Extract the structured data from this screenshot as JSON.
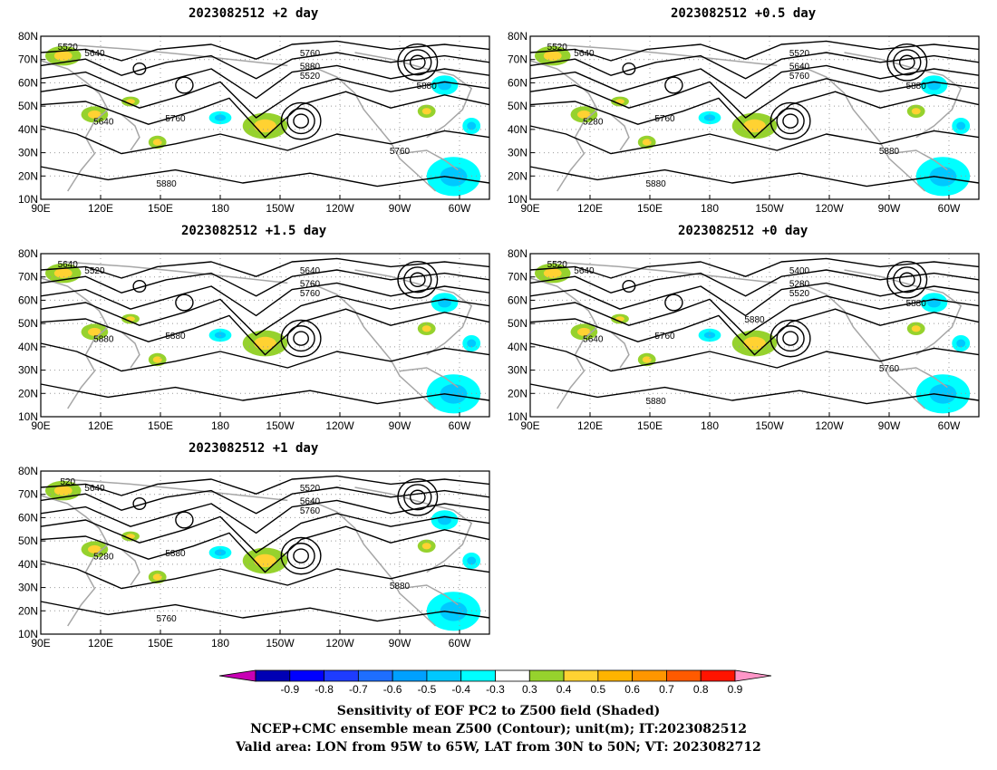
{
  "panels": [
    {
      "id": "p1",
      "title": "2023082512  +2 day"
    },
    {
      "id": "p2",
      "title": "2023082512  +0.5 day"
    },
    {
      "id": "p3",
      "title": "2023082512  +1.5 day"
    },
    {
      "id": "p4",
      "title": "2023082512  +0 day"
    },
    {
      "id": "p5",
      "title": "2023082512  +1 day"
    }
  ],
  "axes": {
    "x_ticks": [
      "90E",
      "120E",
      "150E",
      "180",
      "150W",
      "120W",
      "90W",
      "60W"
    ],
    "y_ticks": [
      "10N",
      "20N",
      "30N",
      "40N",
      "50N",
      "60N",
      "70N",
      "80N"
    ]
  },
  "contour_levels": {
    "p1": [
      "5520",
      "5640",
      "5760",
      "5880",
      "5520",
      "5640",
      "5760",
      "5760",
      "5880",
      "5880"
    ],
    "p2": [
      "5520",
      "5640",
      "5520",
      "5640",
      "5760",
      "5280",
      "5760",
      "5880",
      "5880",
      "5880"
    ],
    "p3": [
      "5640",
      "5520",
      "5640",
      "5760",
      "5760",
      "5880",
      "5880"
    ],
    "p4": [
      "5520",
      "5640",
      "5400",
      "5280",
      "5520",
      "5640",
      "5760",
      "5760",
      "5880",
      "5880",
      "5880"
    ],
    "p5": [
      "520",
      "5640",
      "5520",
      "5640",
      "5760",
      "5280",
      "5880",
      "5880",
      "5760"
    ]
  },
  "colorbar": {
    "labels": [
      "-0.9",
      "-0.8",
      "-0.7",
      "-0.6",
      "-0.5",
      "-0.4",
      "-0.3",
      "0.3",
      "0.4",
      "0.5",
      "0.6",
      "0.7",
      "0.8",
      "0.9"
    ],
    "colors": [
      "#0000b4",
      "#0000ff",
      "#1e3cff",
      "#1e6eff",
      "#00a0ff",
      "#00c8ff",
      "#00ffff",
      "#ffffff",
      "#96d22d",
      "#ffd232",
      "#ffb400",
      "#ff9600",
      "#ff5a00",
      "#ff1400"
    ],
    "low_color": "#c800b4",
    "high_color": "#ff96c8"
  },
  "captions": [
    "Sensitivity of EOF PC2 to Z500 field (Shaded)",
    "NCEP+CMC ensemble mean Z500 (Contour); unit(m); IT:2023082512",
    "Valid area: LON from 95W to 65W, LAT from 30N to 50N; VT: 2023082712"
  ]
}
